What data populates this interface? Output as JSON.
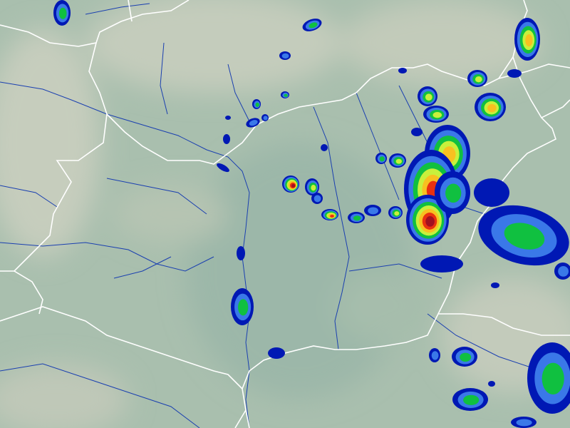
{
  "map": {
    "terrain_colors": {
      "lowland": "#9fb8aa",
      "plain": "#a8c0ae",
      "hills": "#b9c7b4",
      "mountains": "#cfd3c4"
    },
    "border_color": "#ffffff",
    "river_color": "#1a3fb0",
    "radar_levels": [
      {
        "level": 1,
        "color": "#0018b4"
      },
      {
        "level": 2,
        "color": "#3a78e8"
      },
      {
        "level": 3,
        "color": "#10c040"
      },
      {
        "level": 4,
        "color": "#c8f03c"
      },
      {
        "level": 5,
        "color": "#f8c020"
      },
      {
        "level": 6,
        "color": "#e83010"
      },
      {
        "level": 7,
        "color": "#a01020"
      },
      {
        "level": 8,
        "color": "#505090"
      }
    ]
  }
}
